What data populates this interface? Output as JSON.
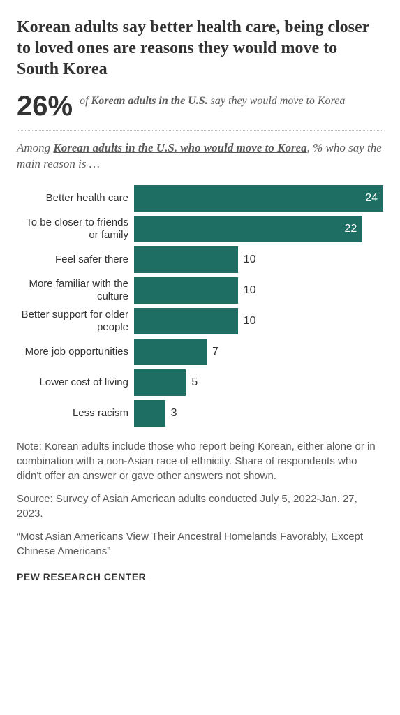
{
  "title": {
    "text": "Korean adults say better health care, being closer to loved ones are reasons they would move to South Korea",
    "fontsize": 24,
    "color": "#333333"
  },
  "stat": {
    "number": "26%",
    "number_fontsize": 40,
    "number_color": "#333333",
    "prefix": "of ",
    "underlined": "Korean adults in the U.S.",
    "suffix": " say they would move to Korea",
    "fontsize": 16
  },
  "subhead": {
    "prefix": "Among ",
    "underlined": "Korean adults in the U.S. who would move to Korea",
    "suffix": ", % who say the main reason is …",
    "fontsize": 17
  },
  "chart": {
    "type": "bar",
    "bar_color": "#1f6e63",
    "max_value": 24,
    "label_fontsize": 15,
    "value_fontsize": 16,
    "threshold_inside": 15,
    "items": [
      {
        "label": "Better health care",
        "value": 24
      },
      {
        "label": "To be closer to friends or family",
        "value": 22
      },
      {
        "label": "Feel safer there",
        "value": 10
      },
      {
        "label": "More familiar with the culture",
        "value": 10
      },
      {
        "label": "Better support for older people",
        "value": 10
      },
      {
        "label": "More job opportunities",
        "value": 7
      },
      {
        "label": "Lower cost of living",
        "value": 5
      },
      {
        "label": "Less racism",
        "value": 3
      }
    ]
  },
  "note": {
    "text": "Note: Korean adults include those who report being Korean, either alone or in combination with a non-Asian race of ethnicity. Share of respondents who didn't offer an answer or gave other answers not shown.",
    "fontsize": 15
  },
  "source": {
    "text": "Source: Survey of Asian American adults conducted July 5, 2022-Jan. 27, 2023.",
    "fontsize": 15
  },
  "citation": {
    "text": "“Most Asian Americans View Their Ancestral Homelands Favorably, Except Chinese Americans”",
    "fontsize": 15
  },
  "footer": {
    "text": "PEW RESEARCH CENTER",
    "fontsize": 14
  }
}
